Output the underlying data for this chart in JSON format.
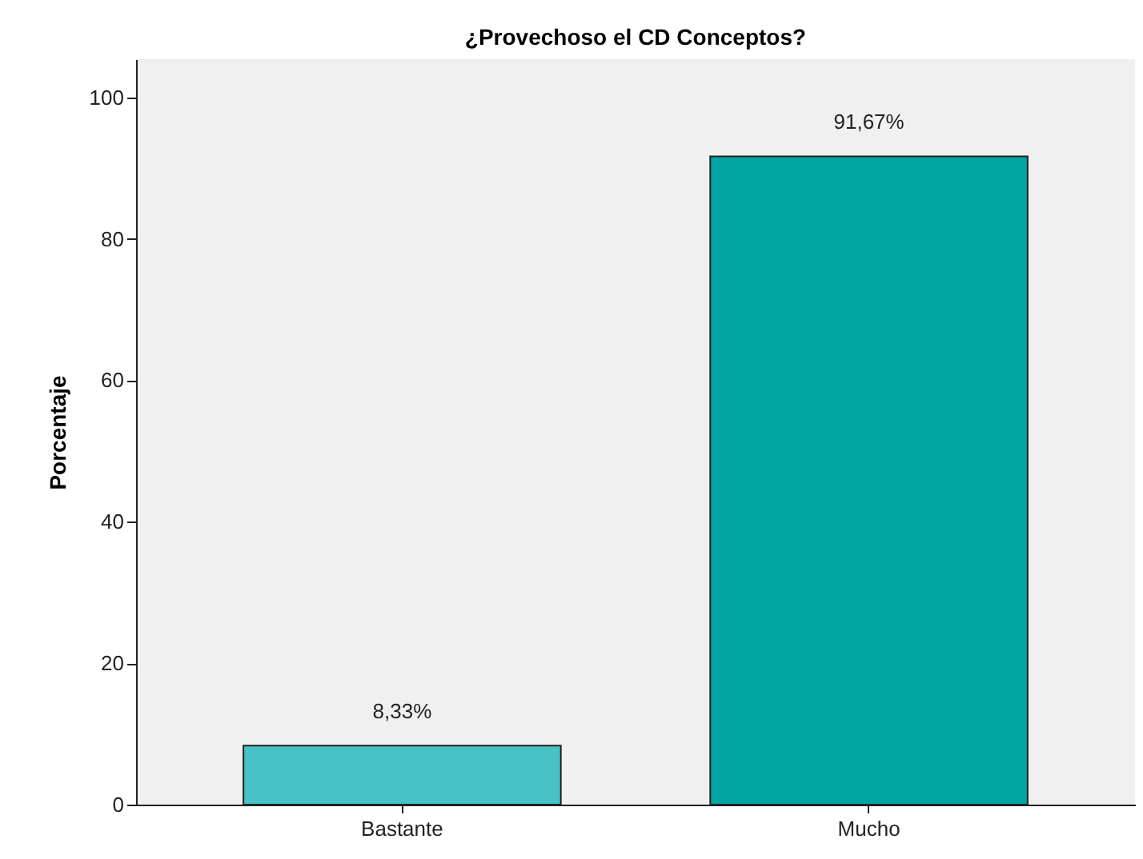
{
  "chart_data": {
    "type": "bar",
    "title": "¿Provechoso el CD Conceptos?",
    "ylabel": "Porcentaje",
    "categories": [
      "Bastante",
      "Mucho"
    ],
    "values": [
      8.33,
      91.67
    ],
    "colors": [
      "#48c2c5",
      "#00a5a3"
    ],
    "value_labels": [
      "8,33%",
      "91,67%"
    ],
    "ylim": [
      0,
      105.4
    ],
    "yticks": [
      0,
      20,
      40,
      60,
      80,
      100
    ],
    "grid": false
  }
}
